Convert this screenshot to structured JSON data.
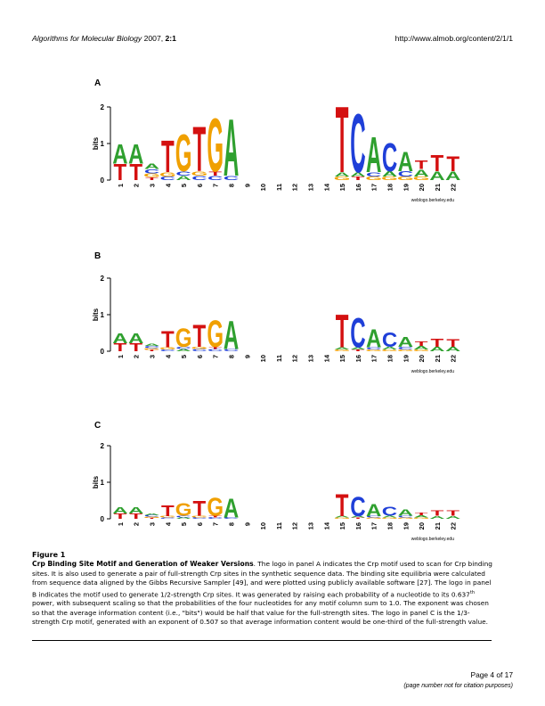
{
  "header": {
    "journal": "Algorithms for Molecular Biology",
    "year": "2007,",
    "volume": "2:1",
    "url": "http://www.almob.org/content/2/1/1"
  },
  "panels": [
    {
      "label": "A"
    },
    {
      "label": "B"
    },
    {
      "label": "C"
    }
  ],
  "axis": {
    "ylabel": "bits",
    "yticks": [
      "0",
      "1",
      "2"
    ],
    "credit": "weblogo.berkeley.edu"
  },
  "positions": [
    "1",
    "2",
    "3",
    "4",
    "5",
    "6",
    "7",
    "8",
    "9",
    "10",
    "11",
    "12",
    "13",
    "14",
    "15",
    "16",
    "17",
    "18",
    "19",
    "20",
    "21",
    "22"
  ],
  "colors": {
    "A": "#2fa02f",
    "C": "#1f3fd8",
    "G": "#f0a000",
    "T": "#d41010"
  },
  "logo_columns": [
    {
      "letters": [
        [
          "A",
          0.55
        ],
        [
          "T",
          0.45
        ]
      ]
    },
    {
      "letters": [
        [
          "A",
          0.55
        ],
        [
          "T",
          0.45
        ]
      ]
    },
    {
      "letters": [
        [
          "A",
          0.14
        ],
        [
          "C",
          0.12
        ],
        [
          "G",
          0.1
        ],
        [
          "T",
          0.08
        ]
      ]
    },
    {
      "letters": [
        [
          "G",
          0.12
        ],
        [
          "C",
          0.1
        ],
        [
          "T",
          0.9
        ]
      ]
    },
    {
      "letters": [
        [
          "A",
          0.12
        ],
        [
          "C",
          0.12
        ],
        [
          "G",
          1.05
        ]
      ]
    },
    {
      "letters": [
        [
          "C",
          0.12
        ],
        [
          "G",
          0.12
        ],
        [
          "T",
          1.25
        ]
      ]
    },
    {
      "letters": [
        [
          "C",
          0.12
        ],
        [
          "T",
          0.12
        ],
        [
          "G",
          1.5
        ]
      ]
    },
    {
      "letters": [
        [
          "C",
          0.12
        ],
        [
          "A",
          1.6
        ]
      ]
    },
    {
      "letters": []
    },
    {
      "letters": []
    },
    {
      "letters": []
    },
    {
      "letters": []
    },
    {
      "letters": []
    },
    {
      "letters": []
    },
    {
      "letters": [
        [
          "A",
          0.12
        ],
        [
          "G",
          0.1
        ],
        [
          "T",
          1.85
        ]
      ]
    },
    {
      "letters": [
        [
          "A",
          0.12
        ],
        [
          "T",
          0.1
        ],
        [
          "C",
          1.65
        ]
      ]
    },
    {
      "letters": [
        [
          "C",
          0.12
        ],
        [
          "G",
          0.1
        ],
        [
          "A",
          1.0
        ]
      ]
    },
    {
      "letters": [
        [
          "A",
          0.15
        ],
        [
          "G",
          0.1
        ],
        [
          "C",
          0.8
        ]
      ]
    },
    {
      "letters": [
        [
          "C",
          0.15
        ],
        [
          "G",
          0.1
        ],
        [
          "A",
          0.55
        ]
      ]
    },
    {
      "letters": [
        [
          "A",
          0.2
        ],
        [
          "G",
          0.1
        ],
        [
          "T",
          0.25
        ]
      ]
    },
    {
      "letters": [
        [
          "A",
          0.25
        ],
        [
          "T",
          0.45
        ]
      ]
    },
    {
      "letters": [
        [
          "A",
          0.25
        ],
        [
          "T",
          0.42
        ]
      ]
    }
  ],
  "panel_scales": [
    1.0,
    0.5,
    0.3333
  ],
  "caption": {
    "figure": "Figure 1",
    "title": "Crp Binding Site Motif and Generation of Weaker Versions",
    "body": ". The logo in panel A indicates the Crp motif used to scan for Crp binding sites. It is also used to generate a pair of full-strength Crp sites in the synthetic sequence data. The binding site equilibria were calculated from sequence data aligned by the Gibbs Recursive Sampler [49], and were plotted using publicly available software [27]. The logo in panel B indicates the motif used to generate 1/2-strength Crp sites. It was generated by raising each probability of a nucleotide to its 0.637",
    "sup": "th",
    "body2": " power, with subsequent scaling so that the probabilities of the four nucleotides for any motif column sum to 1.0. The exponent was chosen so that the average information content (i.e., \"bits\") would be half that value for the full-strength sites. The logo in panel C is the 1/3-strength Crp motif, generated with an exponent of 0.507 so that average information content would be one-third of the full-strength value."
  },
  "footer": {
    "page": "Page 4 of 17",
    "note": "(page number not for citation purposes)"
  }
}
